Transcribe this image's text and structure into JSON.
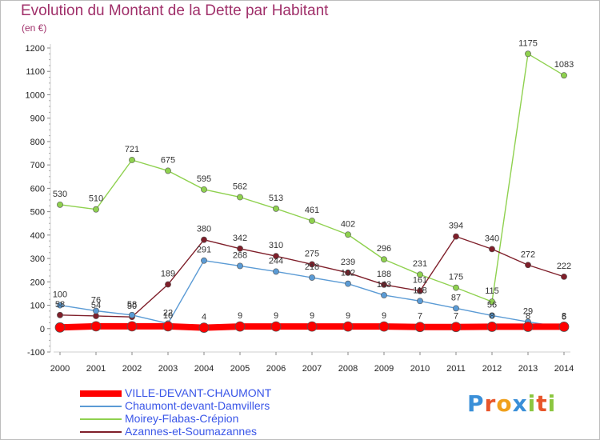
{
  "header": {
    "title": "Evolution du Montant de la Dette par Habitant",
    "unit": "(en €)"
  },
  "chart_data": {
    "type": "line",
    "x": [
      "2000",
      "2001",
      "2002",
      "2003",
      "2004",
      "2005",
      "2006",
      "2007",
      "2008",
      "2009",
      "2010",
      "2011",
      "2012",
      "2013",
      "2014"
    ],
    "ylim": [
      -100,
      1200
    ],
    "yticks": [
      -100,
      0,
      100,
      200,
      300,
      400,
      500,
      600,
      700,
      800,
      900,
      1000,
      1100,
      1200
    ],
    "grid": false,
    "legend_position": "bottom-left",
    "series": [
      {
        "name": "VILLE-DEVANT-CHAUMONT",
        "color": "#ff0000",
        "values": [
          5,
          10,
          10,
          10,
          4,
          9,
          9,
          9,
          9,
          9,
          7,
          7,
          8,
          8,
          8
        ],
        "labels": [
          "",
          "",
          "",
          "10",
          "4",
          "9",
          "9",
          "9",
          "9",
          "9",
          "7",
          "7",
          "8",
          "8",
          "8"
        ]
      },
      {
        "name": "Chaumont-devant-Damvillers",
        "color": "#5b9bd5",
        "values": [
          100,
          76,
          58,
          22,
          291,
          268,
          244,
          218,
          192,
          143,
          118,
          87,
          56,
          29,
          5
        ],
        "labels": [
          "100",
          "76",
          "58",
          "22",
          "291",
          "268",
          "244",
          "218",
          "192",
          "143",
          "118",
          "87",
          "56",
          "29",
          "5"
        ]
      },
      {
        "name": "Moirey-Flabas-Crépion",
        "color": "#8fd14f",
        "values": [
          530,
          510,
          721,
          675,
          595,
          562,
          513,
          461,
          402,
          296,
          231,
          175,
          115,
          1175,
          1083
        ],
        "labels": [
          "530",
          "510",
          "721",
          "675",
          "595",
          "562",
          "513",
          "461",
          "402",
          "296",
          "231",
          "175",
          "115",
          "1175",
          "1083"
        ]
      },
      {
        "name": "Azannes-et-Soumazannes",
        "color": "#7f1f2a",
        "values": [
          58,
          54,
          50,
          189,
          380,
          342,
          310,
          275,
          239,
          188,
          161,
          394,
          340,
          272,
          222
        ],
        "labels": [
          "58",
          "54",
          "50",
          "189",
          "380",
          "342",
          "310",
          "275",
          "239",
          "188",
          "161",
          "394",
          "340",
          "272",
          "222"
        ]
      }
    ]
  },
  "logo": {
    "letters": [
      "P",
      "r",
      "o",
      "x",
      "i",
      "t",
      "i"
    ],
    "colors": [
      "#3a8fd8",
      "#e8552a",
      "#f0a01c",
      "#3a8fd8",
      "#8cc63f",
      "#e8552a",
      "#8cc63f"
    ]
  }
}
